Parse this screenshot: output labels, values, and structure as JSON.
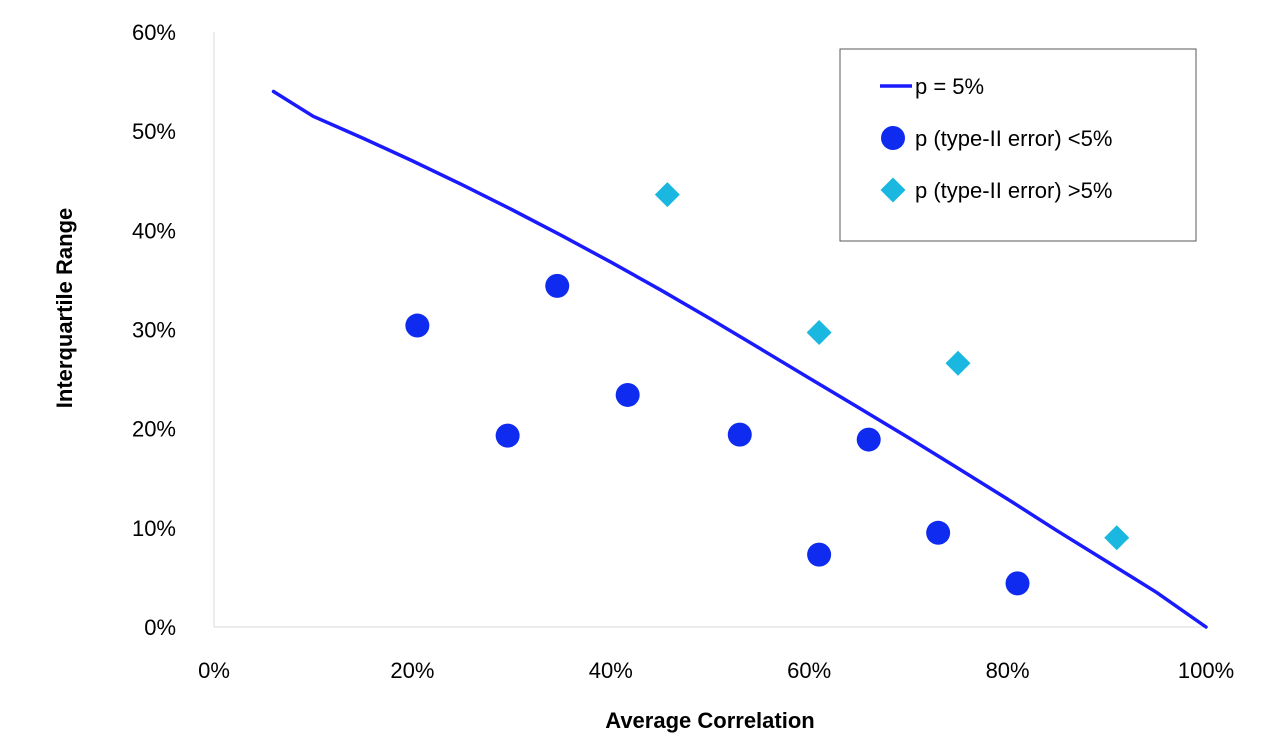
{
  "chart_data": {
    "type": "scatter",
    "xlabel": "Average Correlation",
    "ylabel": "Interquartile Range",
    "xlim": [
      0,
      100
    ],
    "ylim": [
      0,
      60
    ],
    "x_ticks": [
      "0%",
      "20%",
      "40%",
      "60%",
      "80%",
      "100%"
    ],
    "y_ticks": [
      "0%",
      "10%",
      "20%",
      "30%",
      "40%",
      "50%",
      "60%"
    ],
    "legend_position": "top-right",
    "grid": false,
    "series": [
      {
        "name": "p = 5%",
        "kind": "line",
        "color": "#1a1aff",
        "points": [
          [
            6,
            54
          ],
          [
            10,
            51.5
          ],
          [
            15,
            49.3
          ],
          [
            20,
            47
          ],
          [
            25,
            44.6
          ],
          [
            30,
            42.1
          ],
          [
            35,
            39.5
          ],
          [
            40,
            36.8
          ],
          [
            45,
            34
          ],
          [
            50,
            31.1
          ],
          [
            55,
            28.1
          ],
          [
            60,
            25.1
          ],
          [
            65,
            22.1
          ],
          [
            70,
            19.1
          ],
          [
            75,
            16
          ],
          [
            80,
            12.9
          ],
          [
            85,
            9.7
          ],
          [
            90,
            6.6
          ],
          [
            95,
            3.5
          ],
          [
            100,
            0
          ]
        ]
      },
      {
        "name": "p (type-II error) <5%",
        "kind": "scatter",
        "marker": "circle",
        "color": "#0f2bf0",
        "points": [
          [
            20.5,
            30.4
          ],
          [
            29.6,
            19.3
          ],
          [
            34.6,
            34.4
          ],
          [
            41.7,
            23.4
          ],
          [
            53,
            19.4
          ],
          [
            61,
            7.3
          ],
          [
            66,
            18.9
          ],
          [
            73,
            9.5
          ],
          [
            81,
            4.4
          ]
        ]
      },
      {
        "name": "p (type-II error) >5%",
        "kind": "scatter",
        "marker": "diamond",
        "color": "#1ab8e0",
        "points": [
          [
            45.7,
            43.6
          ],
          [
            61,
            29.7
          ],
          [
            75,
            26.6
          ],
          [
            91,
            9
          ]
        ]
      }
    ]
  }
}
